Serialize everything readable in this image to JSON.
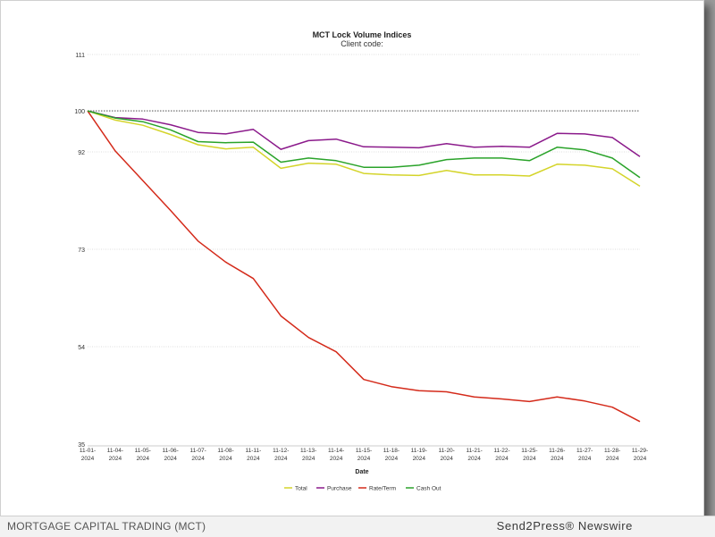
{
  "chart_data": {
    "type": "line",
    "title": "MCT Lock Volume Indices",
    "subtitle": "Client code:",
    "xlabel": "Date",
    "ylabel": "",
    "ylim": [
      35,
      111
    ],
    "y_ticks": [
      35,
      54,
      73,
      92,
      100,
      111
    ],
    "baseline": 100,
    "categories": [
      "11-01-2024",
      "11-04-2024",
      "11-05-2024",
      "11-06-2024",
      "11-07-2024",
      "11-08-2024",
      "11-11-2024",
      "11-12-2024",
      "11-13-2024",
      "11-14-2024",
      "11-15-2024",
      "11-18-2024",
      "11-19-2024",
      "11-20-2024",
      "11-21-2024",
      "11-22-2024",
      "11-25-2024",
      "11-26-2024",
      "11-27-2024",
      "11-28-2024",
      "11-29-2024"
    ],
    "category_lines": [
      [
        "11-01-",
        "2024"
      ],
      [
        "11-04-",
        "2024"
      ],
      [
        "11-05-",
        "2024"
      ],
      [
        "11-06-",
        "2024"
      ],
      [
        "11-07-",
        "2024"
      ],
      [
        "11-08-",
        "2024"
      ],
      [
        "11-11-",
        "2024"
      ],
      [
        "11-12-",
        "2024"
      ],
      [
        "11-13-",
        "2024"
      ],
      [
        "11-14-",
        "2024"
      ],
      [
        "11-15-",
        "2024"
      ],
      [
        "11-18-",
        "2024"
      ],
      [
        "11-19-",
        "2024"
      ],
      [
        "11-20-",
        "2024"
      ],
      [
        "11-21-",
        "2024"
      ],
      [
        "11-22-",
        "2024"
      ],
      [
        "11-25-",
        "2024"
      ],
      [
        "11-26-",
        "2024"
      ],
      [
        "11-27-",
        "2024"
      ],
      [
        "11-28-",
        "2024"
      ],
      [
        "11-29-",
        "2024"
      ]
    ],
    "series": [
      {
        "name": "Total",
        "color": "#d4d42a",
        "values": [
          100,
          98.2,
          97.2,
          95.4,
          93.4,
          92.6,
          92.9,
          88.8,
          89.8,
          89.6,
          87.8,
          87.5,
          87.4,
          88.4,
          87.5,
          87.5,
          87.3,
          89.6,
          89.4,
          88.7,
          85.3
        ]
      },
      {
        "name": "Purchase",
        "color": "#8b1a8b",
        "values": [
          100,
          98.7,
          98.4,
          97.3,
          95.8,
          95.5,
          96.4,
          92.5,
          94.2,
          94.5,
          93.0,
          92.9,
          92.8,
          93.6,
          92.9,
          93.1,
          92.9,
          95.6,
          95.5,
          94.8,
          91.1
        ]
      },
      {
        "name": "Rate/Term",
        "color": "#d42a1a",
        "values": [
          100,
          92.2,
          86.4,
          80.6,
          74.6,
          70.5,
          67.3,
          60.0,
          55.8,
          53.0,
          47.6,
          46.2,
          45.4,
          45.2,
          44.2,
          43.8,
          43.3,
          44.2,
          43.4,
          42.2,
          39.4
        ]
      },
      {
        "name": "Cash Out",
        "color": "#2aa32a",
        "values": [
          100,
          98.6,
          97.9,
          96.3,
          94.0,
          93.8,
          93.9,
          90.0,
          90.8,
          90.3,
          89.0,
          89.0,
          89.4,
          90.5,
          90.8,
          90.8,
          90.3,
          92.9,
          92.4,
          90.8,
          87.0
        ]
      }
    ],
    "legend_position": "bottom-center"
  },
  "footer": {
    "left": "MORTGAGE CAPITAL TRADING (MCT)",
    "right": "Send2Press® Newswire"
  }
}
